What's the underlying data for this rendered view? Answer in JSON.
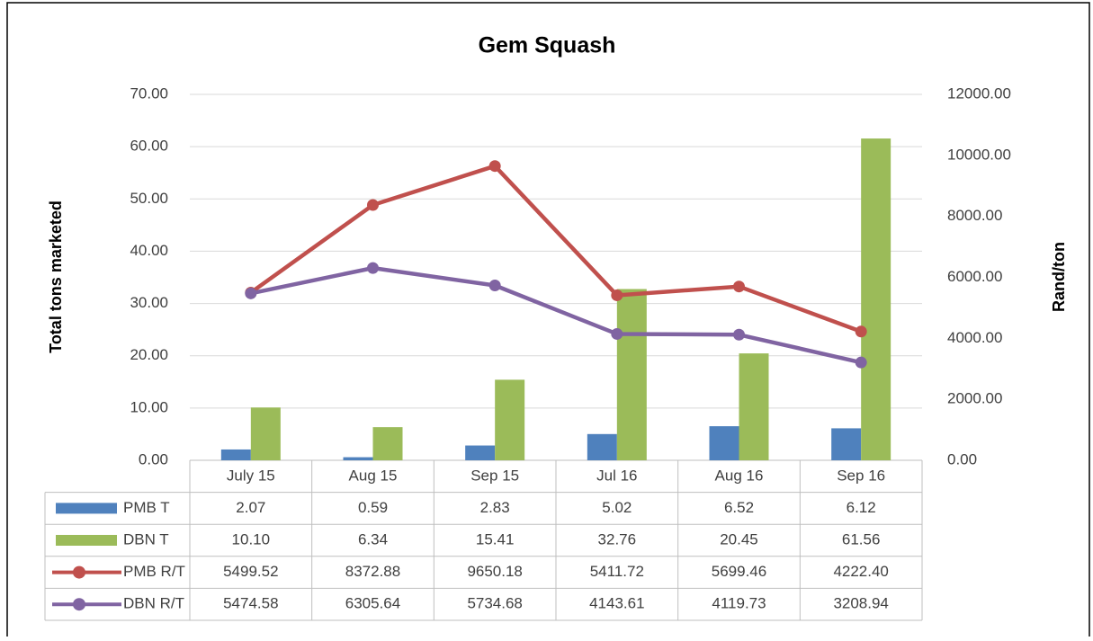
{
  "chart_data": {
    "type": "combo",
    "title": "Gem Squash",
    "y_label": "Total tons marketed",
    "y2_label": "Rand/ton",
    "categories": [
      "July 15",
      "Aug 15",
      "Sep 15",
      "Jul 16",
      "Aug 16",
      "Sep 16"
    ],
    "ylim": [
      0,
      70
    ],
    "yticks": [
      {
        "value": 0,
        "label": "0.00"
      },
      {
        "value": 10,
        "label": "10.00"
      },
      {
        "value": 20,
        "label": "20.00"
      },
      {
        "value": 30,
        "label": "30.00"
      },
      {
        "value": 40,
        "label": "40.00"
      },
      {
        "value": 50,
        "label": "50.00"
      },
      {
        "value": 60,
        "label": "60.00"
      },
      {
        "value": 70,
        "label": "70.00"
      }
    ],
    "y2lim": [
      0,
      12000
    ],
    "y2ticks": [
      {
        "value": 0,
        "label": "0.00"
      },
      {
        "value": 2000,
        "label": "2000.00"
      },
      {
        "value": 4000,
        "label": "4000.00"
      },
      {
        "value": 6000,
        "label": "6000.00"
      },
      {
        "value": 8000,
        "label": "8000.00"
      },
      {
        "value": 10000,
        "label": "10000.00"
      },
      {
        "value": 12000,
        "label": "12000.00"
      }
    ],
    "grid": true,
    "series": [
      {
        "name": "PMB T",
        "type": "bar",
        "color": "#4f81bd",
        "values": [
          2.07,
          0.59,
          2.83,
          5.02,
          6.52,
          6.12
        ],
        "value_labels": [
          "2.07",
          "0.59",
          "2.83",
          "5.02",
          "6.52",
          "6.12"
        ]
      },
      {
        "name": "DBN T",
        "type": "bar",
        "color": "#9bbb59",
        "values": [
          10.1,
          6.34,
          15.41,
          32.76,
          20.45,
          61.56
        ],
        "value_labels": [
          "10.10",
          "6.34",
          "15.41",
          "32.76",
          "20.45",
          "61.56"
        ]
      },
      {
        "name": "PMB R/T",
        "type": "line",
        "axis": "y2",
        "color": "#c0504d",
        "values": [
          5499.52,
          8372.88,
          9650.18,
          5411.72,
          5699.46,
          4222.4
        ],
        "value_labels": [
          "5499.52",
          "8372.88",
          "9650.18",
          "5411.72",
          "5699.46",
          "4222.40"
        ]
      },
      {
        "name": "DBN R/T",
        "type": "line",
        "axis": "y2",
        "color": "#8064a2",
        "values": [
          5474.58,
          6305.64,
          5734.68,
          4143.61,
          4119.73,
          3208.94
        ],
        "value_labels": [
          "5474.58",
          "6305.64",
          "5734.68",
          "4143.61",
          "4119.73",
          "3208.94"
        ]
      }
    ]
  }
}
